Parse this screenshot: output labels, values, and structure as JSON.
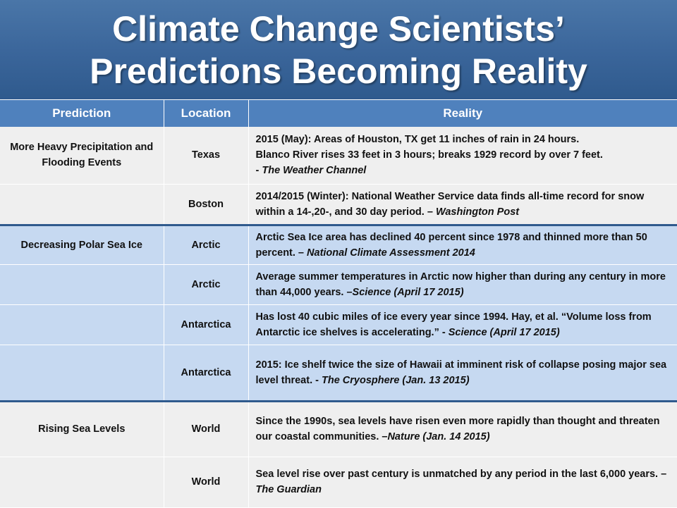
{
  "title": {
    "line1": "Climate Change Scientists’",
    "line2": "Predictions Becoming Reality"
  },
  "table": {
    "headers": [
      "Prediction",
      "Location",
      "Reality"
    ],
    "rows": [
      {
        "prediction": "More Heavy Precipitation and Flooding Events",
        "location": "Texas",
        "reality_line1": "2015 (May): Areas of Houston, TX get 11 inches of rain in 24 hours.",
        "reality_line2": "Blanco River rises 33 feet in 3 hours; breaks 1929 record by over 7 feet.",
        "reality_line3_prefix": "- ",
        "source": "The Weather Channel"
      },
      {
        "prediction": "",
        "location": "Boston",
        "reality": "2014/2015 (Winter): National Weather Service data finds all-time record for snow within a 14-,20-, and 30 day period. – ",
        "source": "Washington Post"
      },
      {
        "prediction": "Decreasing Polar Sea Ice",
        "location": "Arctic",
        "reality": "Arctic Sea Ice area has declined 40 percent since 1978 and thinned more than 50 percent. – ",
        "source": "National Climate Assessment 2014"
      },
      {
        "prediction": "",
        "location": "Arctic",
        "reality": "Average summer temperatures in Arctic now higher than during any century in more than 44,000 years. –",
        "source": "Science (April 17 2015)"
      },
      {
        "prediction": "",
        "location": "Antarctica",
        "reality": "Has lost 40 cubic miles of ice every year since 1994.  Hay, et al. “Volume loss from Antarctic ice shelves is accelerating.” - ",
        "source": "Science (April 17 2015)"
      },
      {
        "prediction": "",
        "location": "Antarctica",
        "reality": "2015: Ice shelf twice the size of Hawaii at imminent risk of collapse posing major sea level threat. - ",
        "source": "The Cryosphere (Jan. 13 2015)"
      },
      {
        "prediction": "Rising Sea Levels",
        "location": "World",
        "reality": "Since the 1990s, sea levels have risen even more rapidly than thought and threaten our coastal communities. –",
        "source": "Nature (Jan. 14 2015)"
      },
      {
        "prediction": "",
        "location": "World",
        "reality": "Sea level rise over past century is unmatched by any period in the last 6,000 years. – ",
        "source": "The Guardian"
      }
    ]
  }
}
